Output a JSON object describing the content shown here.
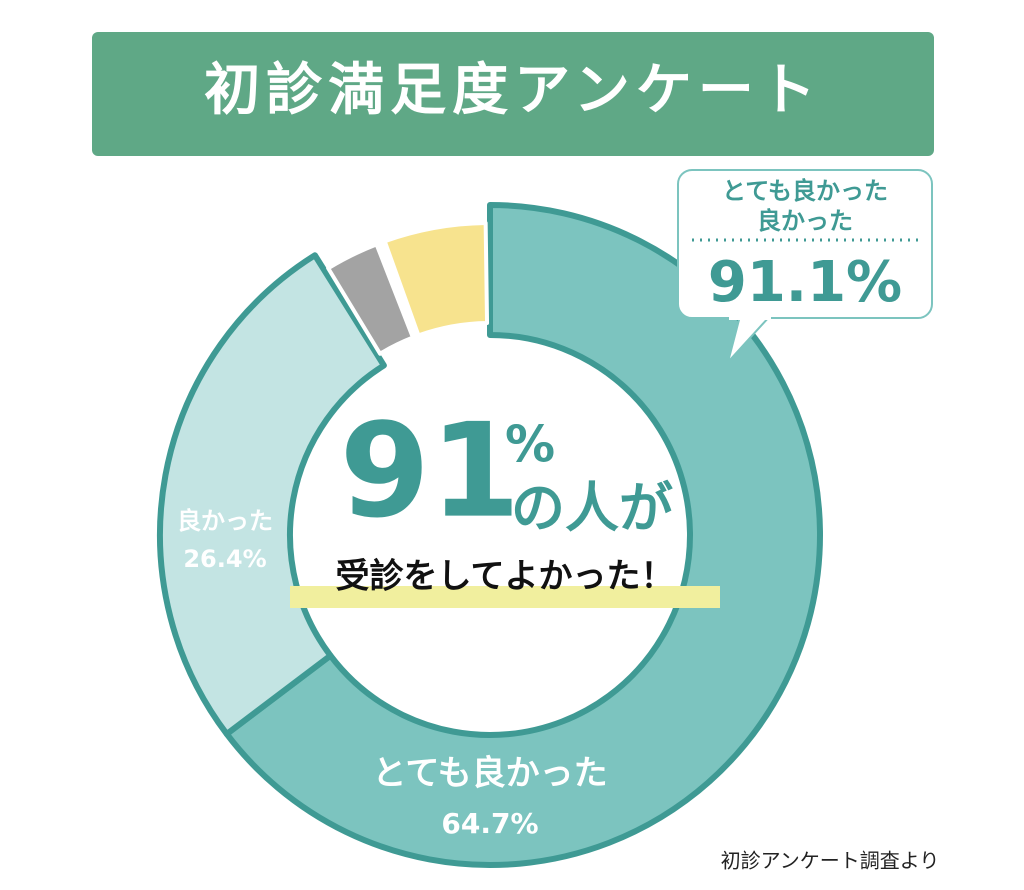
{
  "title": "初診満足度アンケート",
  "source": "初診アンケート調査より",
  "center": {
    "value": 91,
    "unit": "%",
    "text": "の人が",
    "subtext": "受診をしてよかった！"
  },
  "callout": {
    "lines": [
      "とても良かった",
      "良かった"
    ],
    "value": 91.1,
    "value_label": "91.1%"
  },
  "chart_data": {
    "type": "donut",
    "categories": [
      "とても良かった",
      "良かった",
      null,
      null
    ],
    "values": [
      64.7,
      26.4,
      3.2,
      5.7
    ],
    "value_labels": [
      "64.7%",
      "26.4%",
      null,
      null
    ],
    "colors": [
      "#7cc4bf",
      "#c3e4e3",
      "#a3a3a3",
      "#f7e38e"
    ]
  }
}
